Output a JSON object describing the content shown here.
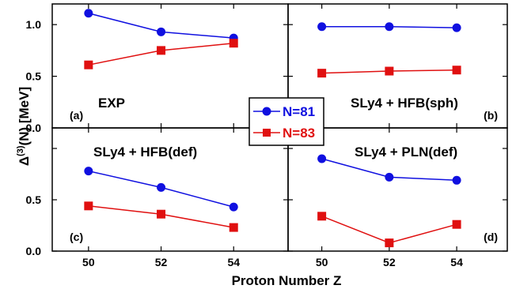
{
  "figure": {
    "ylabel": "Δ(3)(N) [MeV]",
    "xlabel": "Proton Number Z"
  },
  "legend": {
    "entries": [
      "N=81",
      "N=83"
    ],
    "placement": "center"
  },
  "colors": {
    "n81": "#1010e0",
    "n83": "#e01010",
    "axis": "#000000"
  },
  "chart_data": [
    {
      "type": "line",
      "tag": "(a)",
      "label": "EXP",
      "x": [
        50,
        52,
        54
      ],
      "xlim": [
        49,
        55.5
      ],
      "ylim": [
        0,
        1.2
      ],
      "yticks": [
        "0.0",
        "0.5",
        "1.0"
      ],
      "xticks": [],
      "series": [
        {
          "name": "N=81",
          "marker": "circle",
          "values": [
            1.11,
            0.93,
            0.87
          ]
        },
        {
          "name": "N=83",
          "marker": "square",
          "values": [
            0.61,
            0.75,
            0.82
          ]
        }
      ]
    },
    {
      "type": "line",
      "tag": "(b)",
      "label": "SLy4 + HFB(sph)",
      "x": [
        50,
        52,
        54
      ],
      "xlim": [
        49,
        55.5
      ],
      "ylim": [
        0,
        1.2
      ],
      "yticks": [],
      "xticks": [],
      "series": [
        {
          "name": "N=81",
          "marker": "circle",
          "values": [
            0.98,
            0.98,
            0.97
          ]
        },
        {
          "name": "N=83",
          "marker": "square",
          "values": [
            0.53,
            0.55,
            0.56
          ]
        }
      ]
    },
    {
      "type": "line",
      "tag": "(c)",
      "label": "SLy4 + HFB(def)",
      "x": [
        50,
        52,
        54
      ],
      "xlim": [
        49,
        55.5
      ],
      "ylim": [
        0,
        1.2
      ],
      "yticks": [
        "0.0",
        "0.5"
      ],
      "xticks": [
        "50",
        "52",
        "54"
      ],
      "series": [
        {
          "name": "N=81",
          "marker": "circle",
          "values": [
            0.78,
            0.62,
            0.43
          ]
        },
        {
          "name": "N=83",
          "marker": "square",
          "values": [
            0.44,
            0.36,
            0.23
          ]
        }
      ]
    },
    {
      "type": "line",
      "tag": "(d)",
      "label": "SLy4 + PLN(def)",
      "x": [
        50,
        52,
        54
      ],
      "xlim": [
        49,
        55.5
      ],
      "ylim": [
        0,
        1.2
      ],
      "yticks": [],
      "xticks": [
        "50",
        "52",
        "54"
      ],
      "series": [
        {
          "name": "N=81",
          "marker": "circle",
          "values": [
            0.9,
            0.72,
            0.69
          ]
        },
        {
          "name": "N=83",
          "marker": "square",
          "values": [
            0.34,
            0.08,
            0.26
          ]
        }
      ]
    }
  ]
}
